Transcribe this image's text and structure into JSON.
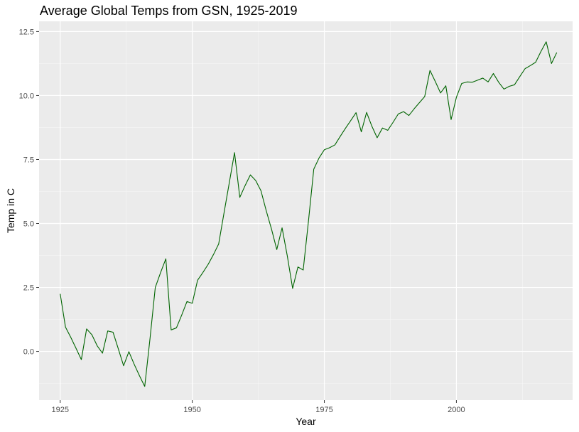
{
  "chart_data": {
    "type": "line",
    "title": "Average Global Temps from GSN, 1925-2019",
    "xlabel": "Year",
    "ylabel": "Temp in C",
    "xlim": [
      1921,
      2022
    ],
    "ylim": [
      -1.9,
      12.9
    ],
    "x_ticks": [
      1925,
      1950,
      1975,
      2000
    ],
    "x_tick_labels": [
      "1925",
      "1950",
      "1975",
      "2000"
    ],
    "y_ticks": [
      0,
      2.5,
      5,
      7.5,
      10,
      12.5
    ],
    "y_tick_labels": [
      "0.0",
      "2.5",
      "5.0",
      "7.5",
      "10.0",
      "12.5"
    ],
    "grid": true,
    "panel_background": "#ebebeb",
    "series": [
      {
        "color": "#006400",
        "x": [
          1925,
          1926,
          1927,
          1928,
          1929,
          1930,
          1931,
          1932,
          1933,
          1934,
          1935,
          1936,
          1937,
          1938,
          1939,
          1940,
          1941,
          1942,
          1943,
          1944,
          1945,
          1946,
          1947,
          1948,
          1949,
          1950,
          1951,
          1952,
          1953,
          1954,
          1955,
          1956,
          1957,
          1958,
          1959,
          1960,
          1961,
          1962,
          1963,
          1964,
          1965,
          1966,
          1967,
          1968,
          1969,
          1970,
          1971,
          1972,
          1973,
          1974,
          1975,
          1976,
          1977,
          1978,
          1979,
          1980,
          1981,
          1982,
          1983,
          1984,
          1985,
          1986,
          1987,
          1988,
          1989,
          1990,
          1991,
          1992,
          1993,
          1994,
          1995,
          1996,
          1997,
          1998,
          1999,
          2000,
          2001,
          2002,
          2003,
          2004,
          2005,
          2006,
          2007,
          2008,
          2009,
          2010,
          2011,
          2012,
          2013,
          2014,
          2015,
          2016,
          2017,
          2018,
          2019
        ],
        "y": [
          2.25,
          0.95,
          0.55,
          0.12,
          -0.32,
          0.88,
          0.65,
          0.22,
          -0.07,
          0.8,
          0.75,
          0.1,
          -0.56,
          -0.01,
          -0.5,
          -0.95,
          -1.37,
          0.5,
          2.5,
          3.08,
          3.62,
          0.84,
          0.92,
          1.42,
          1.95,
          1.88,
          2.78,
          3.08,
          3.4,
          3.78,
          4.2,
          5.4,
          6.58,
          7.77,
          6.02,
          6.48,
          6.9,
          6.68,
          6.28,
          5.5,
          4.78,
          3.98,
          4.83,
          3.72,
          2.46,
          3.3,
          3.18,
          5.1,
          7.12,
          7.56,
          7.88,
          7.96,
          8.07,
          8.4,
          8.72,
          9.02,
          9.33,
          8.58,
          9.34,
          8.8,
          8.35,
          8.73,
          8.64,
          8.95,
          9.28,
          9.37,
          9.22,
          9.48,
          9.72,
          9.96,
          10.98,
          10.55,
          10.1,
          10.38,
          9.06,
          9.93,
          10.47,
          10.53,
          10.52,
          10.6,
          10.68,
          10.53,
          10.86,
          10.52,
          10.25,
          10.36,
          10.42,
          10.74,
          11.05,
          11.17,
          11.3,
          11.72,
          12.1,
          11.25,
          11.68
        ]
      }
    ]
  }
}
